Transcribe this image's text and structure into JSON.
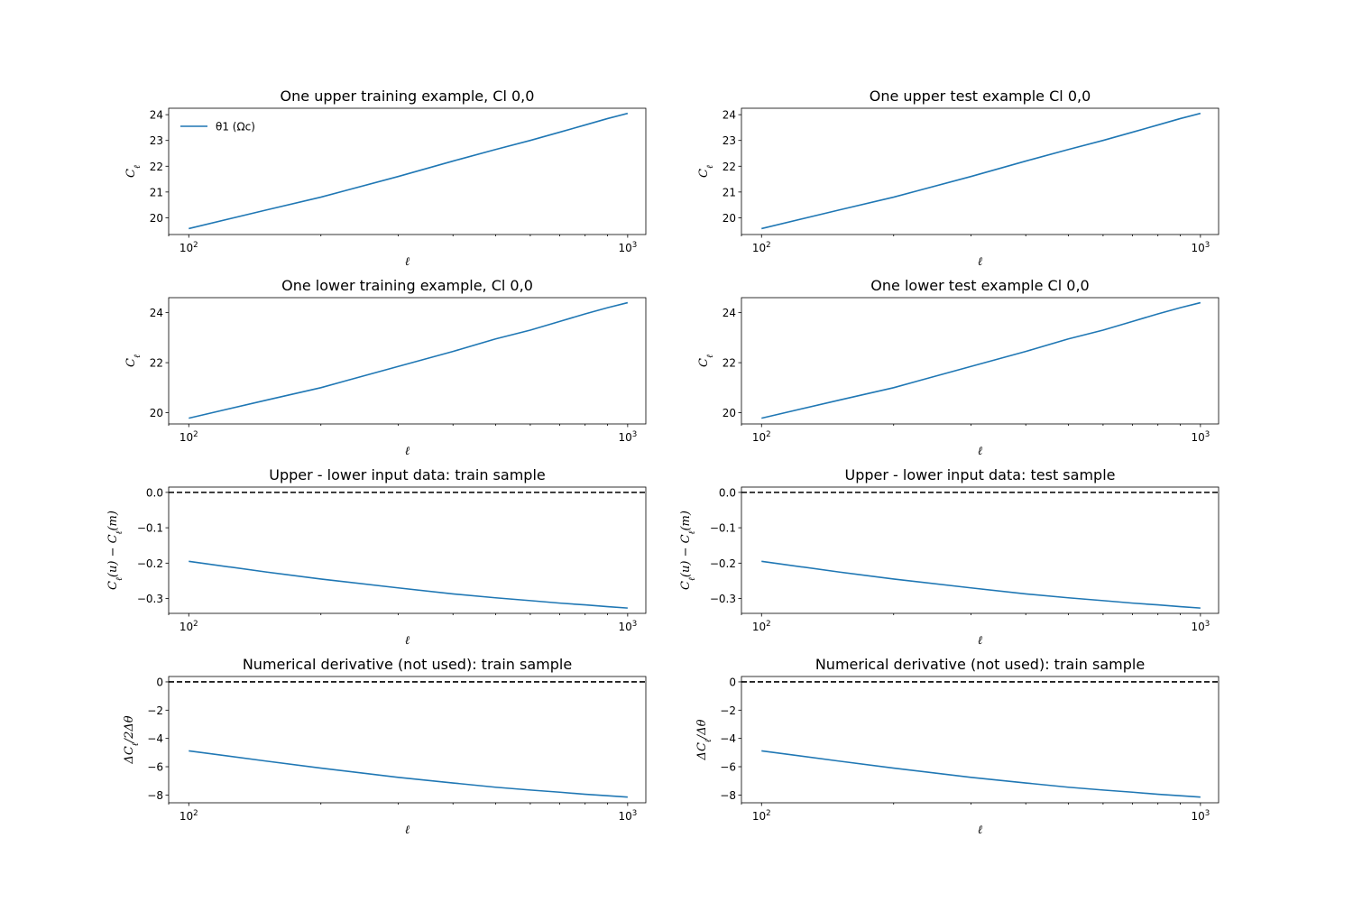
{
  "figure": {
    "background": "#ffffff",
    "line_color": "#1f77b4",
    "reference_line_color": "#000000"
  },
  "chart_data": [
    {
      "type": "line",
      "title": "One upper training example, Cl 0,0",
      "xlabel": "ℓ",
      "ylabel": "C_ℓ",
      "xscale": "log",
      "xlim": [
        90,
        1100
      ],
      "ylim": [
        19.35,
        24.25
      ],
      "xticks": [
        {
          "value": 100,
          "label": "10^2"
        },
        {
          "value": 1000,
          "label": "10^3"
        }
      ],
      "yticks": [
        20,
        21,
        22,
        23,
        24
      ],
      "legend": {
        "position": "top-left",
        "entries": [
          "θ1 (Ωc)"
        ]
      },
      "series": [
        {
          "name": "θ1 (Ωc)",
          "x": [
            100,
            150,
            200,
            300,
            400,
            500,
            600,
            700,
            800,
            900,
            1000
          ],
          "y": [
            19.58,
            20.3,
            20.8,
            21.6,
            22.2,
            22.65,
            23.0,
            23.32,
            23.6,
            23.85,
            24.05
          ]
        }
      ],
      "hlines": []
    },
    {
      "type": "line",
      "title": "One upper test example Cl 0,0",
      "xlabel": "ℓ",
      "ylabel": "C_ℓ",
      "xscale": "log",
      "xlim": [
        90,
        1100
      ],
      "ylim": [
        19.35,
        24.25
      ],
      "xticks": [
        {
          "value": 100,
          "label": "10^2"
        },
        {
          "value": 1000,
          "label": "10^3"
        }
      ],
      "yticks": [
        20,
        21,
        22,
        23,
        24
      ],
      "series": [
        {
          "x": [
            100,
            150,
            200,
            300,
            400,
            500,
            600,
            700,
            800,
            900,
            1000
          ],
          "y": [
            19.58,
            20.3,
            20.8,
            21.6,
            22.2,
            22.65,
            23.0,
            23.32,
            23.6,
            23.85,
            24.05
          ]
        }
      ],
      "hlines": []
    },
    {
      "type": "line",
      "title": "One lower training example, Cl 0,0",
      "xlabel": "ℓ",
      "ylabel": "C_ℓ",
      "xscale": "log",
      "xlim": [
        90,
        1100
      ],
      "ylim": [
        19.55,
        24.6
      ],
      "xticks": [
        {
          "value": 100,
          "label": "10^2"
        },
        {
          "value": 1000,
          "label": "10^3"
        }
      ],
      "yticks": [
        20,
        22,
        24
      ],
      "series": [
        {
          "x": [
            100,
            150,
            200,
            300,
            400,
            500,
            600,
            700,
            800,
            900,
            1000
          ],
          "y": [
            19.78,
            20.5,
            21.0,
            21.85,
            22.45,
            22.95,
            23.3,
            23.65,
            23.95,
            24.2,
            24.4
          ]
        }
      ],
      "hlines": []
    },
    {
      "type": "line",
      "title": "One lower test example Cl 0,0",
      "xlabel": "ℓ",
      "ylabel": "C_ℓ",
      "xscale": "log",
      "xlim": [
        90,
        1100
      ],
      "ylim": [
        19.55,
        24.6
      ],
      "xticks": [
        {
          "value": 100,
          "label": "10^2"
        },
        {
          "value": 1000,
          "label": "10^3"
        }
      ],
      "yticks": [
        20,
        22,
        24
      ],
      "series": [
        {
          "x": [
            100,
            150,
            200,
            300,
            400,
            500,
            600,
            700,
            800,
            900,
            1000
          ],
          "y": [
            19.78,
            20.5,
            21.0,
            21.85,
            22.45,
            22.95,
            23.3,
            23.65,
            23.95,
            24.2,
            24.4
          ]
        }
      ],
      "hlines": []
    },
    {
      "type": "line",
      "title": "Upper - lower input data: train sample",
      "xlabel": "ℓ",
      "ylabel": "C_ℓ(u) − C_ℓ(m)",
      "xscale": "log",
      "xlim": [
        90,
        1100
      ],
      "ylim": [
        -0.342,
        0.015
      ],
      "xticks": [
        {
          "value": 100,
          "label": "10^2"
        },
        {
          "value": 1000,
          "label": "10^3"
        }
      ],
      "yticks": [
        {
          "value": 0.0,
          "label": "0.0"
        },
        {
          "value": -0.1,
          "label": "−0.1"
        },
        {
          "value": -0.2,
          "label": "−0.2"
        },
        {
          "value": -0.3,
          "label": "−0.3"
        }
      ],
      "series": [
        {
          "x": [
            100,
            150,
            200,
            300,
            400,
            500,
            600,
            700,
            800,
            900,
            1000
          ],
          "y": [
            -0.195,
            -0.225,
            -0.245,
            -0.27,
            -0.287,
            -0.298,
            -0.306,
            -0.313,
            -0.318,
            -0.323,
            -0.327
          ]
        }
      ],
      "hlines": [
        0
      ]
    },
    {
      "type": "line",
      "title": "Upper - lower input data: test sample",
      "xlabel": "ℓ",
      "ylabel": "C_ℓ(u) − C_ℓ(m)",
      "xscale": "log",
      "xlim": [
        90,
        1100
      ],
      "ylim": [
        -0.342,
        0.015
      ],
      "xticks": [
        {
          "value": 100,
          "label": "10^2"
        },
        {
          "value": 1000,
          "label": "10^3"
        }
      ],
      "yticks": [
        {
          "value": 0.0,
          "label": "0.0"
        },
        {
          "value": -0.1,
          "label": "−0.1"
        },
        {
          "value": -0.2,
          "label": "−0.2"
        },
        {
          "value": -0.3,
          "label": "−0.3"
        }
      ],
      "series": [
        {
          "x": [
            100,
            150,
            200,
            300,
            400,
            500,
            600,
            700,
            800,
            900,
            1000
          ],
          "y": [
            -0.195,
            -0.225,
            -0.245,
            -0.27,
            -0.287,
            -0.298,
            -0.306,
            -0.313,
            -0.318,
            -0.323,
            -0.327
          ]
        }
      ],
      "hlines": [
        0
      ]
    },
    {
      "type": "line",
      "title": "Numerical derivative (not used): train sample",
      "xlabel": "ℓ",
      "ylabel": "ΔC_ℓ/2Δθ",
      "xscale": "log",
      "xlim": [
        90,
        1100
      ],
      "ylim": [
        -8.55,
        0.38
      ],
      "xticks": [
        {
          "value": 100,
          "label": "10^2"
        },
        {
          "value": 1000,
          "label": "10^3"
        }
      ],
      "yticks": [
        {
          "value": 0,
          "label": "0"
        },
        {
          "value": -2,
          "label": "−2"
        },
        {
          "value": -4,
          "label": "−4"
        },
        {
          "value": -6,
          "label": "−6"
        },
        {
          "value": -8,
          "label": "−8"
        }
      ],
      "series": [
        {
          "x": [
            100,
            150,
            200,
            300,
            400,
            500,
            600,
            700,
            800,
            900,
            1000
          ],
          "y": [
            -4.88,
            -5.6,
            -6.1,
            -6.75,
            -7.15,
            -7.45,
            -7.65,
            -7.8,
            -7.95,
            -8.05,
            -8.15
          ]
        }
      ],
      "hlines": [
        0
      ]
    },
    {
      "type": "line",
      "title": "Numerical derivative (not used): train sample",
      "xlabel": "ℓ",
      "ylabel": "ΔC_ℓ/Δθ",
      "xscale": "log",
      "xlim": [
        90,
        1100
      ],
      "ylim": [
        -8.55,
        0.38
      ],
      "xticks": [
        {
          "value": 100,
          "label": "10^2"
        },
        {
          "value": 1000,
          "label": "10^3"
        }
      ],
      "yticks": [
        {
          "value": 0,
          "label": "0"
        },
        {
          "value": -2,
          "label": "−2"
        },
        {
          "value": -4,
          "label": "−4"
        },
        {
          "value": -6,
          "label": "−6"
        },
        {
          "value": -8,
          "label": "−8"
        }
      ],
      "series": [
        {
          "x": [
            100,
            150,
            200,
            300,
            400,
            500,
            600,
            700,
            800,
            900,
            1000
          ],
          "y": [
            -4.88,
            -5.6,
            -6.1,
            -6.75,
            -7.15,
            -7.45,
            -7.65,
            -7.8,
            -7.95,
            -8.05,
            -8.15
          ]
        }
      ],
      "hlines": [
        0
      ]
    }
  ]
}
